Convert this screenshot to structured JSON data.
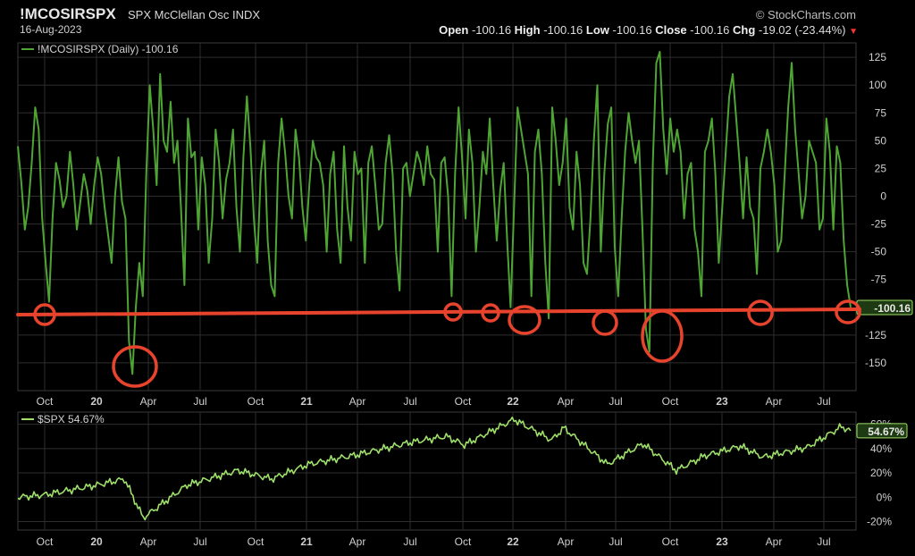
{
  "header": {
    "symbol": "!MCOSIRSPX",
    "description": "SPX McClellan Osc INDX",
    "date": "16-Aug-2023",
    "brand": "© StockCharts.com",
    "open_label": "Open",
    "open": "-100.16",
    "high_label": "High",
    "high": "-100.16",
    "low_label": "Low",
    "low": "-100.16",
    "close_label": "Close",
    "close": "-100.16",
    "chg_label": "Chg",
    "chg": "-19.02 (-23.44%)",
    "chg_icon": "down-arrow-icon"
  },
  "colors": {
    "osc_line": "#4fa534",
    "spx_line": "#9ee06a",
    "annotation": "#e8432d",
    "grid": "#2e2e2e",
    "last_value_badge": "#9ee06a"
  },
  "chart_data": [
    {
      "type": "line",
      "name": "oscillator",
      "legend": "!MCOSIRSPX (Daily) -100.16",
      "legend_position": "top-left",
      "last_value_label": "-100.16",
      "y_ticks": [
        125,
        100,
        75,
        50,
        25,
        0,
        -25,
        -50,
        -75,
        -125,
        -150
      ],
      "ylim": [
        -175,
        138
      ],
      "x_ticks": [
        "Oct",
        "20",
        "Apr",
        "Jul",
        "Oct",
        "21",
        "Apr",
        "Jul",
        "Oct",
        "22",
        "Apr",
        "Jul",
        "Oct",
        "23",
        "Apr",
        "Jul"
      ],
      "grid": true,
      "series": [
        {
          "values": [
            45,
            12,
            -30,
            -10,
            30,
            80,
            60,
            -20,
            -60,
            -95,
            -20,
            30,
            15,
            -10,
            0,
            40,
            10,
            -30,
            -5,
            20,
            5,
            -25,
            10,
            35,
            20,
            -10,
            -35,
            -60,
            0,
            35,
            -5,
            -20,
            -130,
            -160,
            -100,
            -60,
            -90,
            20,
            100,
            60,
            10,
            110,
            50,
            40,
            85,
            30,
            50,
            -10,
            -80,
            70,
            35,
            40,
            -30,
            35,
            10,
            -60,
            -20,
            60,
            30,
            -20,
            15,
            30,
            60,
            -10,
            -50,
            35,
            90,
            45,
            -20,
            -60,
            20,
            50,
            -40,
            -80,
            -90,
            30,
            70,
            40,
            0,
            -20,
            60,
            35,
            -10,
            -40,
            10,
            50,
            35,
            30,
            10,
            -50,
            20,
            40,
            -30,
            -60,
            45,
            -10,
            -40,
            40,
            20,
            25,
            -60,
            30,
            45,
            10,
            -30,
            -25,
            30,
            55,
            20,
            -50,
            -85,
            25,
            30,
            0,
            20,
            40,
            30,
            10,
            45,
            20,
            15,
            -50,
            30,
            35,
            0,
            -90,
            20,
            80,
            35,
            -20,
            60,
            30,
            -50,
            -10,
            40,
            20,
            70,
            10,
            -40,
            5,
            30,
            -40,
            -100,
            -10,
            80,
            60,
            40,
            20,
            -90,
            40,
            60,
            20,
            -60,
            -110,
            80,
            50,
            10,
            30,
            70,
            -10,
            -30,
            40,
            10,
            -60,
            -70,
            -20,
            50,
            100,
            -50,
            20,
            65,
            80,
            -45,
            -90,
            -20,
            40,
            75,
            50,
            30,
            50,
            -30,
            -120,
            -140,
            30,
            120,
            130,
            60,
            20,
            70,
            40,
            60,
            40,
            -20,
            20,
            30,
            -30,
            -50,
            -90,
            40,
            50,
            70,
            20,
            -60,
            -10,
            40,
            90,
            110,
            70,
            30,
            -20,
            35,
            -10,
            -20,
            -70,
            25,
            40,
            60,
            40,
            10,
            -50,
            -40,
            20,
            80,
            120,
            60,
            20,
            -20,
            0,
            50,
            40,
            30,
            -30,
            -20,
            70,
            40,
            -30,
            45,
            30,
            -40,
            -80,
            -100
          ]
        }
      ]
    },
    {
      "type": "line",
      "name": "spx",
      "legend": "$SPX 54.67%",
      "legend_position": "top-left",
      "last_value_label": "54.67%",
      "y_ticks": [
        "60%",
        "40%",
        "20%",
        "0%",
        "-20%"
      ],
      "y_tick_values": [
        60,
        40,
        20,
        0,
        -20
      ],
      "ylim": [
        -27,
        70
      ],
      "x_ticks": [
        "Oct",
        "20",
        "Apr",
        "Jul",
        "Oct",
        "21",
        "Apr",
        "Jul",
        "Oct",
        "22",
        "Apr",
        "Jul",
        "Oct",
        "23",
        "Apr",
        "Jul"
      ],
      "grid": true,
      "series": [
        {
          "x_dates": [
            "2019-08-16",
            "2019-10-01",
            "2020-01-02",
            "2020-02-19",
            "2020-03-23",
            "2020-06-08",
            "2020-09-02",
            "2020-10-30",
            "2021-01-04",
            "2021-04-01",
            "2021-07-01",
            "2021-09-02",
            "2021-10-04",
            "2022-01-03",
            "2022-03-08",
            "2022-03-29",
            "2022-06-16",
            "2022-08-16",
            "2022-10-12",
            "2022-12-01",
            "2023-02-02",
            "2023-03-13",
            "2023-06-01",
            "2023-07-31",
            "2023-08-16"
          ],
          "values": [
            0,
            2,
            10,
            15,
            -17,
            10,
            22,
            15,
            27,
            35,
            45,
            50,
            43,
            64,
            47,
            57,
            27,
            44,
            22,
            34,
            42,
            33,
            41,
            58,
            54.67
          ]
        }
      ]
    }
  ],
  "annotations": {
    "support_line_label": "support-line",
    "circles": [
      "2019-10-08",
      "2020-03-16",
      "2021-09-20",
      "2021-11-29",
      "2022-01-24",
      "2022-06-16",
      "2022-09-26",
      "2023-03-13",
      "2023-08-14"
    ]
  }
}
